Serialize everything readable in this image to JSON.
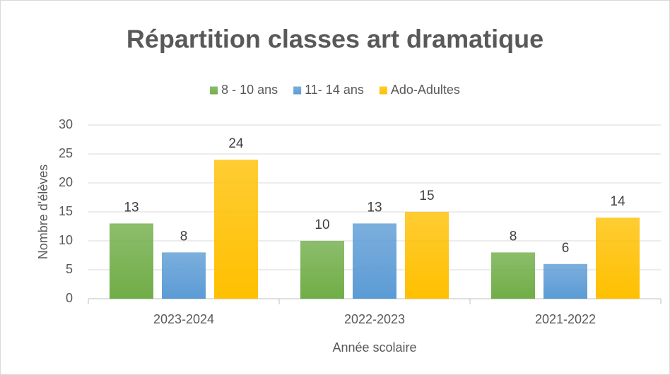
{
  "chart_data": {
    "type": "bar",
    "title": "Répartition classes art dramatique",
    "categories": [
      "2023-2024",
      "2022-2023",
      "2021-2022"
    ],
    "series": [
      {
        "name": "8 - 10 ans",
        "color": "#70ad47",
        "values": [
          13,
          10,
          8
        ]
      },
      {
        "name": "11- 14 ans",
        "color": "#5b9bd5",
        "values": [
          8,
          13,
          6
        ]
      },
      {
        "name": "Ado-Adultes",
        "color": "#ffc000",
        "values": [
          24,
          15,
          14
        ]
      }
    ],
    "x_label": "Année scolaire",
    "y_label": "Nombre d'élèves",
    "ylim": [
      0,
      30
    ],
    "yticks": [
      0,
      5,
      10,
      15,
      20,
      25,
      30
    ],
    "grid": true,
    "legend": "top"
  }
}
